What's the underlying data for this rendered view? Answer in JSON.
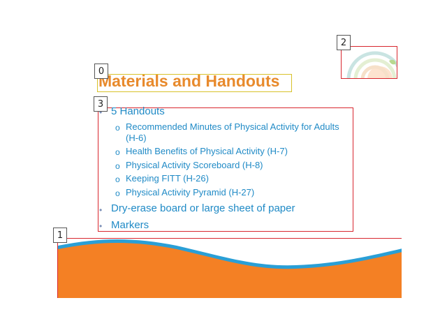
{
  "slide": {
    "title": "Materials and Handouts",
    "items": [
      {
        "text": "5 Handouts",
        "level": 1,
        "children": [
          {
            "text": "Recommended Minutes of Physical Activity for Adults",
            "cont": "(H-6)"
          },
          {
            "text": "Health Benefits of Physical Activity (H-7)"
          },
          {
            "text": "Physical Activity Scoreboard (H-8)"
          },
          {
            "text": "Keeping FITT (H-26)"
          },
          {
            "text": "Physical Activity Pyramid (H-27)"
          }
        ]
      },
      {
        "text": "Dry-erase board or large sheet of paper",
        "level": 1
      },
      {
        "text": "Markers",
        "level": 1
      }
    ]
  },
  "tags": [
    "0",
    "1",
    "2",
    "3"
  ],
  "bullets": {
    "dot": "•",
    "sub": "o"
  },
  "colors": {
    "title": "#e88a2c",
    "text": "#1f8ac6",
    "wave_orange": "#f48024",
    "wave_blue": "#2a9fd6",
    "highlight_red": "#d8262e",
    "highlight_yellow": "#d8c22a"
  },
  "icons": {
    "logo": "rainbow-logo-icon"
  }
}
